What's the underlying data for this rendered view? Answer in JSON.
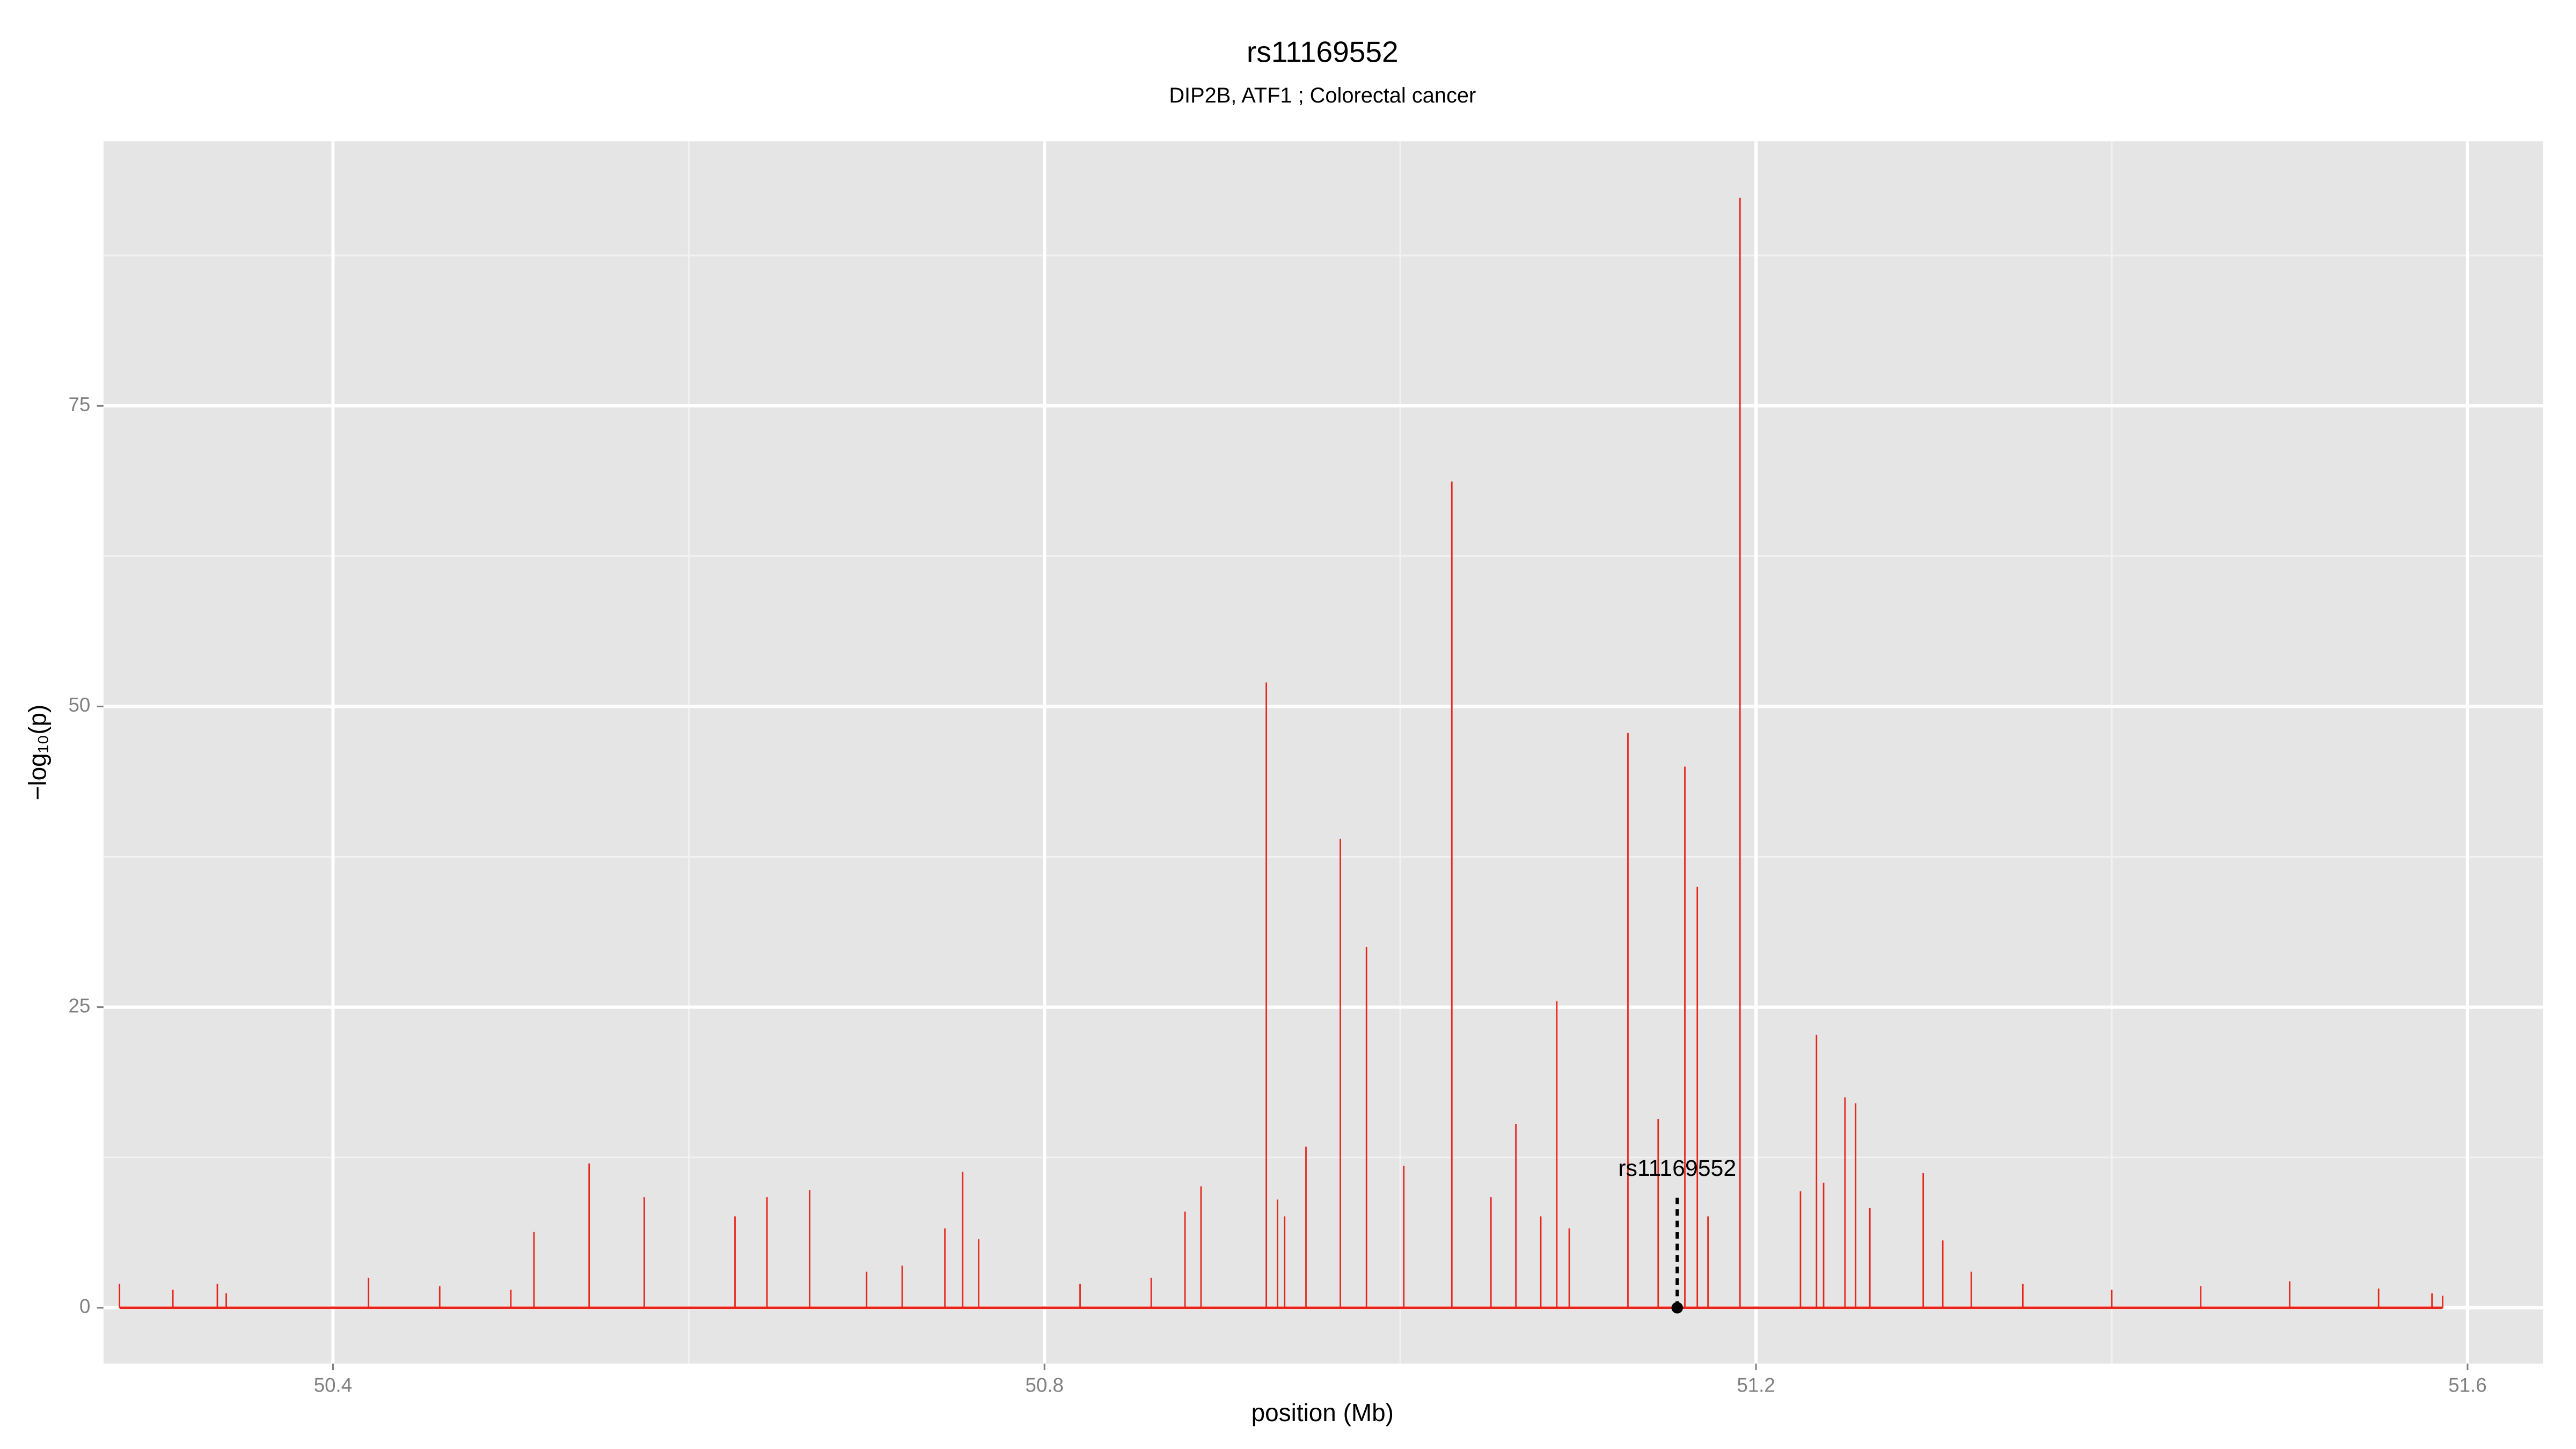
{
  "chart_data": {
    "type": "spike",
    "title": "rs11169552",
    "subtitle": "DIP2B, ATF1 ; Colorectal cancer",
    "xlabel": "position (Mb)",
    "ylabel": "−log₁₀(p)",
    "xlim": [
      50.271,
      51.6425
    ],
    "ylim": [
      -4.64,
      97.0
    ],
    "xticks": [
      50.4,
      50.8,
      51.2,
      51.6
    ],
    "yticks": [
      0,
      25,
      50,
      75
    ],
    "x_minor_grid": [
      50.6,
      51.0,
      51.4
    ],
    "y_minor_grid": [
      12.5,
      37.5,
      62.5,
      87.5
    ],
    "grid": true,
    "color": "#e8251b",
    "x": [
      50.335,
      50.28,
      50.31,
      50.34,
      50.42,
      50.46,
      50.5,
      50.513,
      50.544,
      50.575,
      50.626,
      50.644,
      50.668,
      50.7,
      50.72,
      50.744,
      50.754,
      50.763,
      50.82,
      50.86,
      50.879,
      50.888,
      50.9247,
      50.931,
      50.935,
      50.947,
      50.9663,
      50.981,
      51.002,
      51.029,
      51.051,
      51.065,
      51.079,
      51.088,
      51.095,
      51.128,
      51.145,
      51.16,
      51.167,
      51.173,
      51.191,
      51.225,
      51.234,
      51.238,
      51.25,
      51.256,
      51.264,
      51.294,
      51.305,
      51.321,
      51.35,
      51.4,
      51.45,
      51.5,
      51.55,
      51.58,
      51.586
    ],
    "values": [
      2.0,
      2.0,
      1.5,
      1.2,
      2.5,
      1.8,
      1.5,
      6.3,
      12,
      9.2,
      7.6,
      9.2,
      9.8,
      3,
      3.5,
      6.6,
      11.3,
      5.7,
      2,
      2.5,
      8,
      10.1,
      52,
      9,
      7.6,
      13.4,
      39,
      30,
      11.8,
      68.7,
      9.2,
      15.3,
      7.6,
      25.5,
      6.6,
      47.8,
      15.7,
      45,
      35,
      7.6,
      92.3,
      9.7,
      22.7,
      10.4,
      17.5,
      17,
      8.3,
      11.2,
      5.6,
      3,
      2,
      1.5,
      1.8,
      2.2,
      1.6,
      1.2,
      1.0
    ],
    "annotation": {
      "label": "rs11169552",
      "x": 51.1557,
      "y": 0
    }
  }
}
